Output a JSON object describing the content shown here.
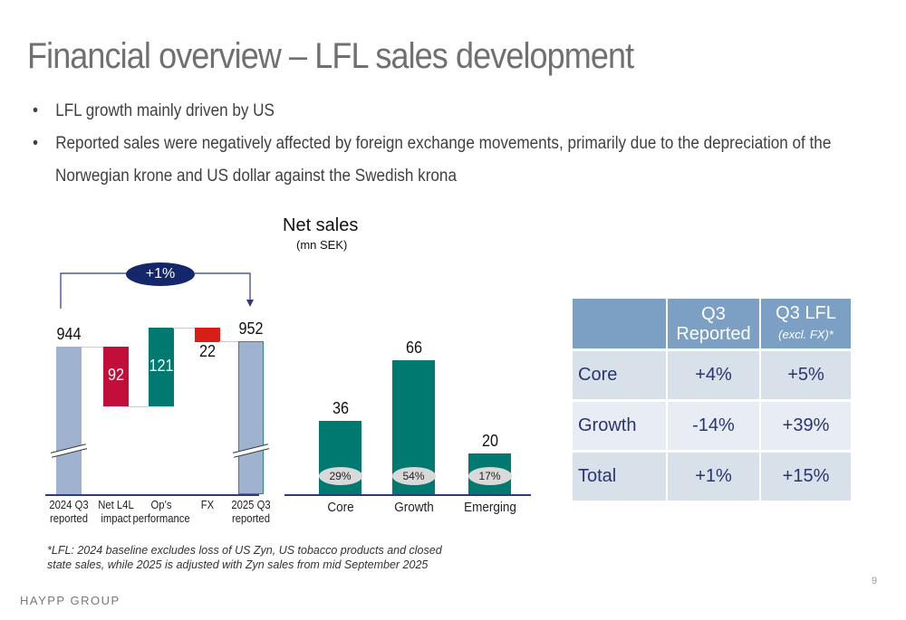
{
  "title": "Financial overview – LFL sales development",
  "bullets": [
    "LFL growth mainly driven by US",
    "Reported sales were negatively affected by foreign exchange movements, primarily due to the depreciation of the",
    "Norwegian krone and US dollar against the Swedish krona"
  ],
  "bullet_char": "•",
  "chart_data": [
    {
      "type": "waterfall",
      "title": "",
      "growth_badge": "+1%",
      "categories": [
        [
          "2024 Q3",
          "reported"
        ],
        [
          "Net L4L",
          "impact"
        ],
        [
          "Op’s",
          "performance"
        ],
        [
          "FX",
          ""
        ],
        [
          "2025 Q3",
          "reported"
        ]
      ],
      "values": [
        944,
        -92,
        121,
        -22,
        952
      ],
      "labels": [
        "944",
        "92",
        "121",
        "22",
        "952"
      ],
      "kinds": [
        "total",
        "decrease",
        "increase",
        "decrease",
        "total"
      ],
      "colors": {
        "total": "#9fb3d1",
        "decrease": "#c20f3a",
        "increase": "#007a70",
        "fx": "#d71f17"
      },
      "broken_axis": true
    },
    {
      "type": "bar",
      "title": "Net sales",
      "subtitle": "(mn SEK)",
      "categories": [
        "Core",
        "Growth",
        "Emerging"
      ],
      "values": [
        36,
        66,
        20
      ],
      "shares": [
        "29%",
        "54%",
        "17%"
      ],
      "color": "#007a70"
    }
  ],
  "table": {
    "headers": [
      [
        "",
        ""
      ],
      [
        "Q3",
        "Reported"
      ],
      [
        "Q3 LFL",
        "(excl. FX)*"
      ]
    ],
    "rows": [
      [
        "Core",
        "+4%",
        "+5%"
      ],
      [
        "Growth",
        "-14%",
        "+39%"
      ],
      [
        "Total",
        "+1%",
        "+15%"
      ]
    ]
  },
  "footnote": [
    "*LFL: 2024 baseline excludes loss of US Zyn, US tobacco products and closed",
    "state sales, while 2025 is adjusted with Zyn sales from mid September 2025"
  ],
  "logo": "HAYPP GROUP",
  "page_number": "9"
}
